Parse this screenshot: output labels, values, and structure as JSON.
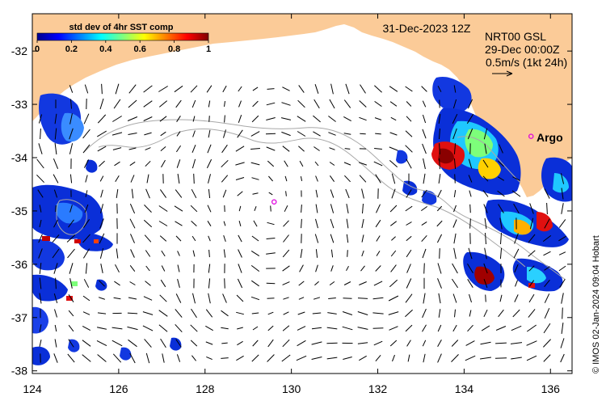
{
  "map": {
    "date_label": "31-Dec-2023 12Z",
    "product_line1": "NRT00 GSL",
    "product_line2": "29-Dec 00:00Z",
    "scale_label": "0.5m/s (1kt 24h)",
    "argo_label": "Argo",
    "credit": "© IMOS 02-Jan-2024 09:04 Hobart",
    "colorbar": {
      "title": "std dev of 4hr SST comp",
      "ticks": [
        "0",
        "0.2",
        "0.4",
        "0.6",
        "0.8",
        "1"
      ]
    },
    "axes": {
      "lon_ticks": [
        "124",
        "126",
        "128",
        "130",
        "132",
        "134",
        "136"
      ],
      "lat_ticks": [
        "-32",
        "-33",
        "-34",
        "-35",
        "-36",
        "-37",
        "-38"
      ],
      "lon_range": [
        124,
        136.5
      ],
      "lat_range": [
        -38.05,
        -31.3
      ]
    },
    "colors": {
      "land": "#fbcb98",
      "ocean": "#ffffff",
      "contour": "#a8a8a8",
      "argo": "#e000e0"
    },
    "argo_floats": [
      {
        "lon": 129.6,
        "lat": -34.83
      },
      {
        "lon": 135.55,
        "lat": -33.6
      }
    ]
  }
}
